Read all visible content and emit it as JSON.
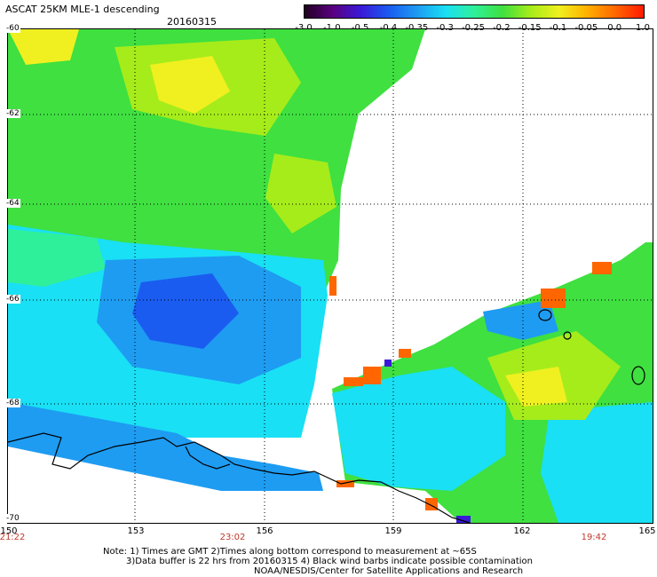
{
  "title": "ASCAT 25KM MLE-1 descending",
  "date": "20160315",
  "colorbar": {
    "labels": [
      "-3.0",
      "-1.0",
      "-0.5",
      "-0.4",
      "-0.35",
      "-0.3",
      "-0.25",
      "-0.2",
      "-0.15",
      "-0.1",
      "-0.05",
      "0.0",
      "1.0"
    ],
    "colors": [
      "#220020",
      "#5a0080",
      "#3a1ad8",
      "#1a5cf0",
      "#1e9cf2",
      "#19e0f4",
      "#2ff09a",
      "#3fe040",
      "#a6ec1a",
      "#f0f020",
      "#ffb000",
      "#ff6600",
      "#ff1a00"
    ]
  },
  "axes": {
    "lat_labels": [
      "-60",
      "-62",
      "-64",
      "-66",
      "-68",
      "-70"
    ],
    "lon_labels": [
      "150",
      "153",
      "156",
      "159",
      "162",
      "165"
    ],
    "time_labels": [
      "21:22",
      "23:02",
      "19:42"
    ]
  },
  "notes": {
    "line1": "Note: 1) Times are GMT 2)Times along bottom correspond to measurement at ~65S",
    "line2": "3)Data buffer is 22 hrs from 20160315 4) Black wind barbs indicate possible contamination",
    "line3": "NOAA/NESDIS/Center for Satellite Applications and Research"
  }
}
